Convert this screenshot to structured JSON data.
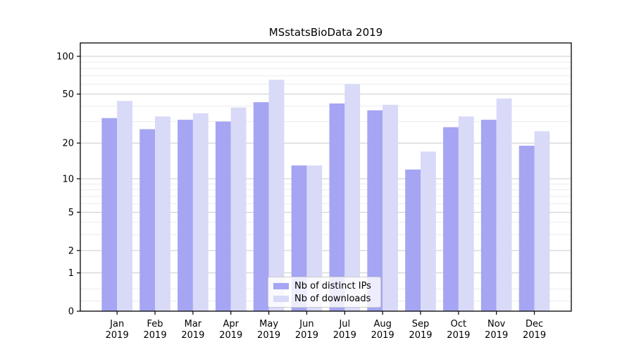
{
  "figure": {
    "title": "MSstatsBioData 2019",
    "background": "#ffffff"
  },
  "chart_data": {
    "type": "bar",
    "title": "MSstatsBioData 2019",
    "xlabel": "",
    "ylabel": "",
    "x_categories": [
      "Jan",
      "Feb",
      "Mar",
      "Apr",
      "May",
      "Jun",
      "Jul",
      "Aug",
      "Sep",
      "Oct",
      "Nov",
      "Dec"
    ],
    "x_year_label": "2019",
    "series": [
      {
        "name": "Nb of distinct IPs",
        "color": "#a5a5f3",
        "values": [
          32,
          26,
          31,
          30,
          43,
          13,
          42,
          37,
          12,
          27,
          31,
          19
        ]
      },
      {
        "name": "Nb of downloads",
        "color": "#d9d9f8",
        "values": [
          44,
          33,
          35,
          39,
          65,
          13,
          60,
          41,
          17,
          33,
          46,
          25
        ]
      }
    ],
    "yscale": "log1p",
    "ylim": [
      0,
      128
    ],
    "yticks": [
      0,
      1,
      2,
      5,
      10,
      20,
      50,
      100
    ],
    "minor_ticks": [
      0.2,
      0.5,
      3,
      4,
      6,
      7,
      8,
      9,
      30,
      40,
      60,
      70,
      80,
      90
    ],
    "grid": "horizontal",
    "legend_position": "lower-center"
  },
  "colors": {
    "axis": "#000000",
    "grid_major": "#cccccc",
    "grid_minor": "#ebebeb",
    "tick_label": "#000000",
    "legend_border": "#cccccc"
  }
}
